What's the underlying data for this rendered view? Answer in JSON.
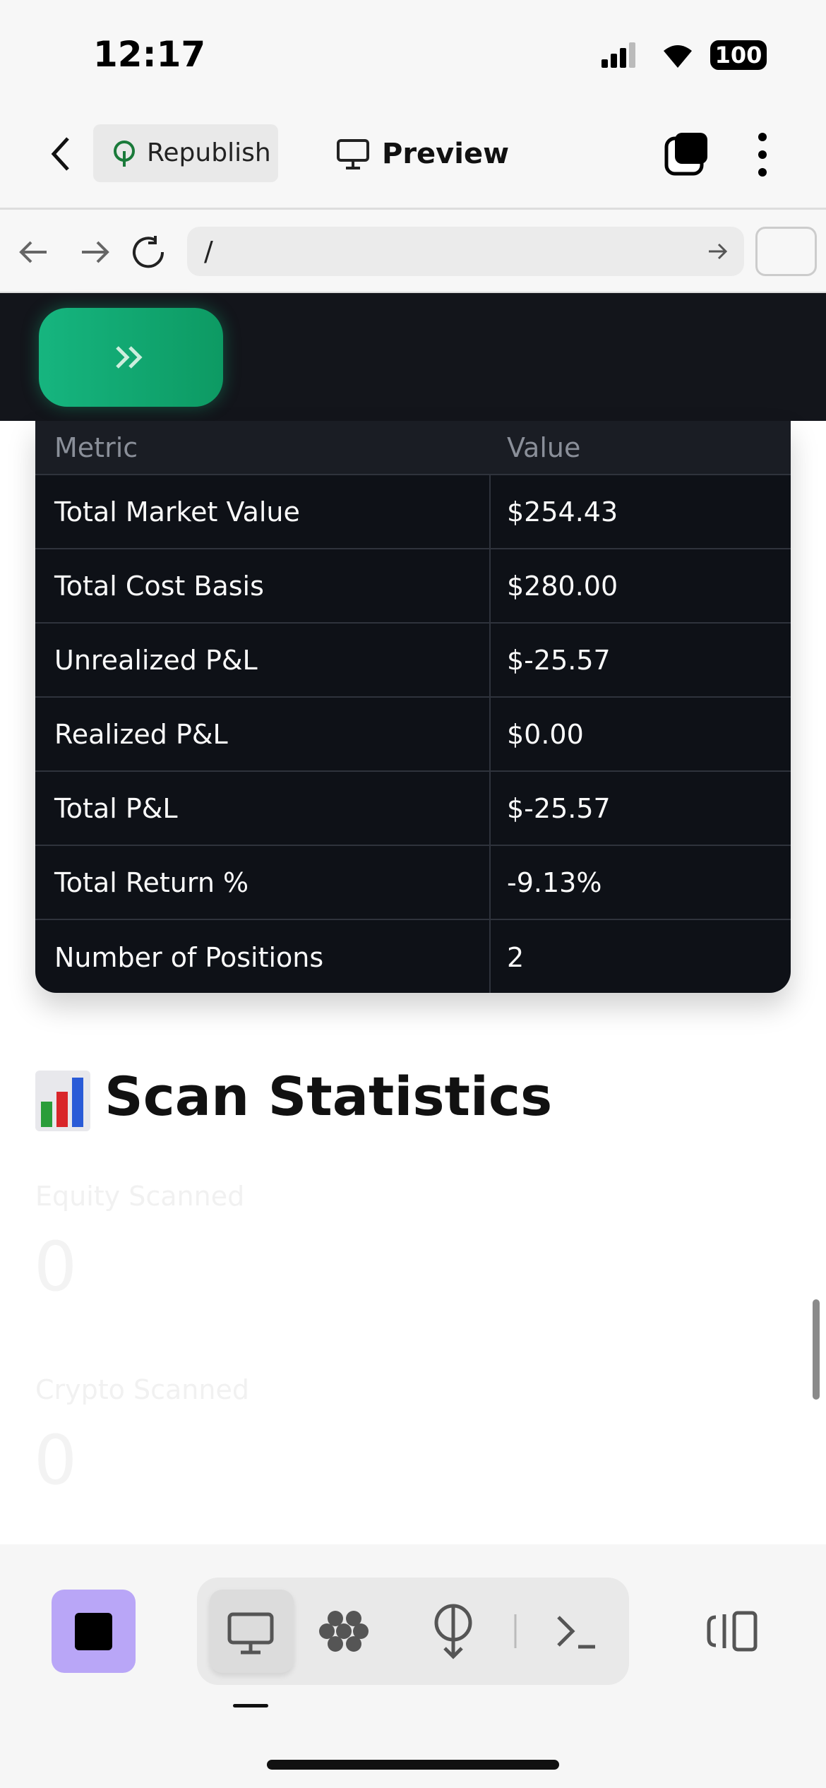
{
  "status": {
    "time": "12:17",
    "battery": "100"
  },
  "toolbar": {
    "republish": "Republish",
    "preview": "Preview"
  },
  "browser": {
    "url": "/"
  },
  "table": {
    "header": [
      "Metric",
      "Value"
    ],
    "rows": [
      [
        "Total Market Value",
        "$254.43"
      ],
      [
        "Total Cost Basis",
        "$280.00"
      ],
      [
        "Unrealized P&L",
        "$-25.57"
      ],
      [
        "Realized P&L",
        "$0.00"
      ],
      [
        "Total P&L",
        "$-25.57"
      ],
      [
        "Total Return %",
        "-9.13%"
      ],
      [
        "Number of Positions",
        "2"
      ]
    ]
  },
  "section": {
    "title": "Scan Statistics"
  },
  "metrics": [
    {
      "label": "Equity Scanned",
      "value": "0"
    },
    {
      "label": "Crypto Scanned",
      "value": "0"
    }
  ]
}
